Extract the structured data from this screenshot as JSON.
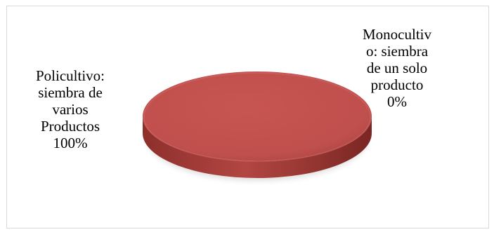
{
  "chart_data": {
    "type": "pie",
    "title": "",
    "categories": [
      "Policultivo: siembra de varios Productos",
      "Monocultivo: siembra de un solo producto"
    ],
    "values": [
      100,
      0
    ],
    "unit": "%",
    "colors": [
      "#c0504d",
      "#4f81bd"
    ],
    "style": "3d",
    "legend": "none",
    "labels": [
      {
        "category": "Policultivo: siembra de varios Productos",
        "lines": [
          "Policultivo:",
          "siembra de",
          "varios",
          "Productos",
          "100%"
        ]
      },
      {
        "category": "Monocultivo: siembra de un solo producto",
        "lines": [
          "Monocultiv",
          "o: siembra",
          "de un solo",
          "producto",
          "0%"
        ]
      }
    ]
  }
}
